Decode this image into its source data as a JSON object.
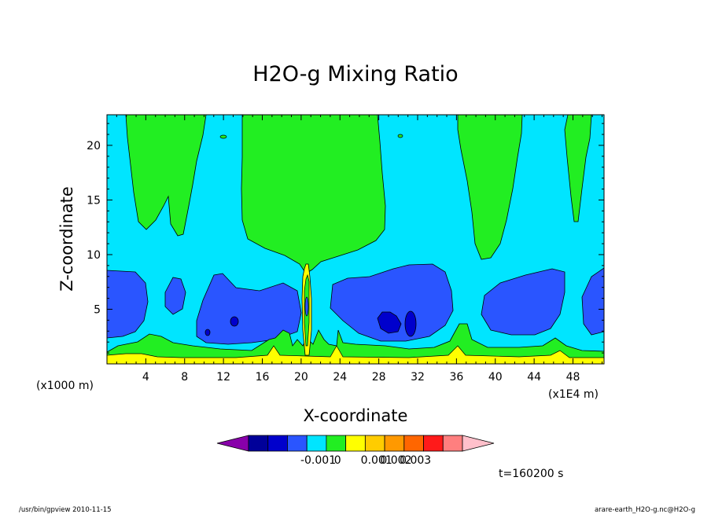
{
  "chart_data": {
    "type": "heatmap",
    "title": "H2O-g Mixing Ratio",
    "xlabel": "X-coordinate",
    "ylabel": "Z-coordinate",
    "x_unit": "(x1E4 m)",
    "z_unit": "(x1000 m)",
    "xlim": [
      0,
      51.2
    ],
    "ylim": [
      0,
      22.8
    ],
    "x_ticks": [
      "4",
      "8",
      "12",
      "16",
      "20",
      "24",
      "28",
      "32",
      "36",
      "40",
      "44",
      "48"
    ],
    "y_ticks": [
      "5",
      "10",
      "15",
      "20"
    ],
    "colorbar": {
      "colors": [
        "#8800aa",
        "#000099",
        "#0000cc",
        "#2a55ff",
        "#00e5ff",
        "#22ee22",
        "#ffff00",
        "#ffcc00",
        "#ff9900",
        "#ff6600",
        "#ff1a1a",
        "#ff7f7f",
        "#ffc0cb"
      ],
      "labels": [
        "-0.001",
        "0",
        "0.001",
        "0.002",
        "0.003"
      ]
    },
    "time_label": "t=160200 s",
    "footer_left": "/usr/bin/gpview   2010-11-15",
    "footer_right": "arare-earth_H2O-g.nc@H2O-g"
  }
}
